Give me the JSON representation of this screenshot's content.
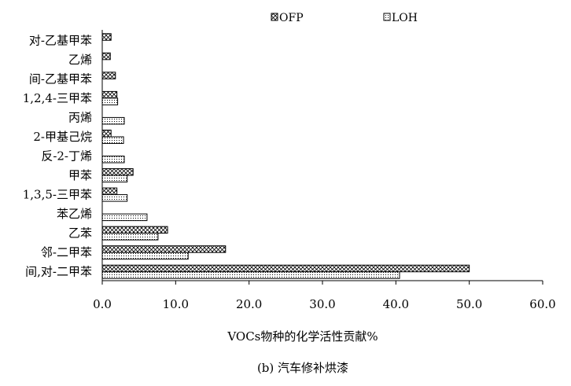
{
  "chart_data": {
    "type": "bar",
    "orientation": "horizontal",
    "categories": [
      "对-乙基甲苯",
      "乙烯",
      "间-乙基甲苯",
      "1,2,4-三甲苯",
      "丙烯",
      "2-甲基己烷",
      "反-2-丁烯",
      "甲苯",
      "1,3,5-三甲苯",
      "苯乙烯",
      "乙苯",
      "邻-二甲苯",
      "间,对-二甲苯"
    ],
    "series": [
      {
        "name": "OFP",
        "pattern": "crosshatch",
        "values": [
          1.2,
          1.1,
          1.8,
          2.0,
          null,
          1.2,
          null,
          4.2,
          2.0,
          null,
          8.9,
          16.8,
          50.0
        ]
      },
      {
        "name": "LOH",
        "pattern": "dots",
        "values": [
          null,
          null,
          null,
          2.1,
          3.0,
          2.9,
          3.0,
          3.4,
          3.4,
          6.1,
          7.6,
          11.7,
          40.5
        ]
      }
    ],
    "xlim": [
      0,
      60
    ],
    "xticks": [
      "0.0",
      "10.0",
      "20.0",
      "30.0",
      "40.0",
      "50.0",
      "60.0"
    ],
    "xlabel": "VOCs物种的化学活性贡献%",
    "ylabel": "",
    "grid": false,
    "legend_position": "top"
  },
  "caption": "(b) 汽车修补烘漆",
  "colors": {
    "axis": "#000000",
    "bar_fill": "#ffffff",
    "bar_stroke": "#000000"
  }
}
